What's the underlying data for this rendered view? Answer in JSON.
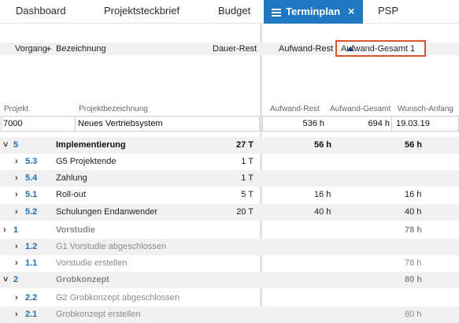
{
  "tabs": [
    {
      "label": "Dashboard"
    },
    {
      "label": "Projektsteckbrief"
    },
    {
      "label": "Budget"
    },
    {
      "label": "Terminplan",
      "active": true
    },
    {
      "label": "PSP"
    }
  ],
  "columns": {
    "vorgang": "Vorgang",
    "plus": "+",
    "bezeichnung": "Bezeichnung",
    "dauer_rest": "Dauer-Rest",
    "aufwand_rest": "Aufwand-Rest",
    "aufwand_gesamt": "Aufwand-Gesamt",
    "sort_index": "1"
  },
  "project": {
    "labels": {
      "projekt": "Projekt",
      "projektbezeichnung": "Projektbezeichnung",
      "aufwand_rest": "Aufwand-Rest",
      "aufwand_gesamt": "Aufwand-Gesamt",
      "wunsch_anfang": "Wunsch-Anfang"
    },
    "values": {
      "projekt": "7000",
      "projektbezeichnung": "Neues Vertriebsystem",
      "aufwand_rest": "536 h",
      "aufwand_gesamt": "694 h",
      "wunsch_anfang": "19.03.19"
    }
  },
  "rows": [
    {
      "chev": "˅",
      "num": "5",
      "name": "Implementierung",
      "dauer": "27 T",
      "rest": "56 h",
      "gesamt": "56 h"
    },
    {
      "chev": "›",
      "num": "5.3",
      "name": "G5 Projektende",
      "dauer": "1 T",
      "rest": "",
      "gesamt": ""
    },
    {
      "chev": "›",
      "num": "5.4",
      "name": "Zahlung",
      "dauer": "1 T",
      "rest": "",
      "gesamt": ""
    },
    {
      "chev": "›",
      "num": "5.1",
      "name": "Roll-out",
      "dauer": "5 T",
      "rest": "16 h",
      "gesamt": "16 h"
    },
    {
      "chev": "›",
      "num": "5.2",
      "name": "Schulungen Endanwender",
      "dauer": "20 T",
      "rest": "40 h",
      "gesamt": "40 h"
    },
    {
      "chev": "›",
      "num": "1",
      "name": "Vorstudie",
      "dauer": "",
      "rest": "",
      "gesamt": "78 h"
    },
    {
      "chev": "›",
      "num": "1.2",
      "name": "G1 Vorstudie abgeschlossen",
      "dauer": "",
      "rest": "",
      "gesamt": ""
    },
    {
      "chev": "›",
      "num": "1.1",
      "name": "Vorstudie erstellen",
      "dauer": "",
      "rest": "",
      "gesamt": "78 h"
    },
    {
      "chev": "˅",
      "num": "2",
      "name": "Grobkonzept",
      "dauer": "",
      "rest": "",
      "gesamt": "80 h"
    },
    {
      "chev": "›",
      "num": "2.2",
      "name": "G2 Grobkonzept abgeschlossen",
      "dauer": "",
      "rest": "",
      "gesamt": ""
    },
    {
      "chev": "›",
      "num": "2.1",
      "name": "Grobkonzept erstellen",
      "dauer": "",
      "rest": "",
      "gesamt": "80 h"
    }
  ]
}
